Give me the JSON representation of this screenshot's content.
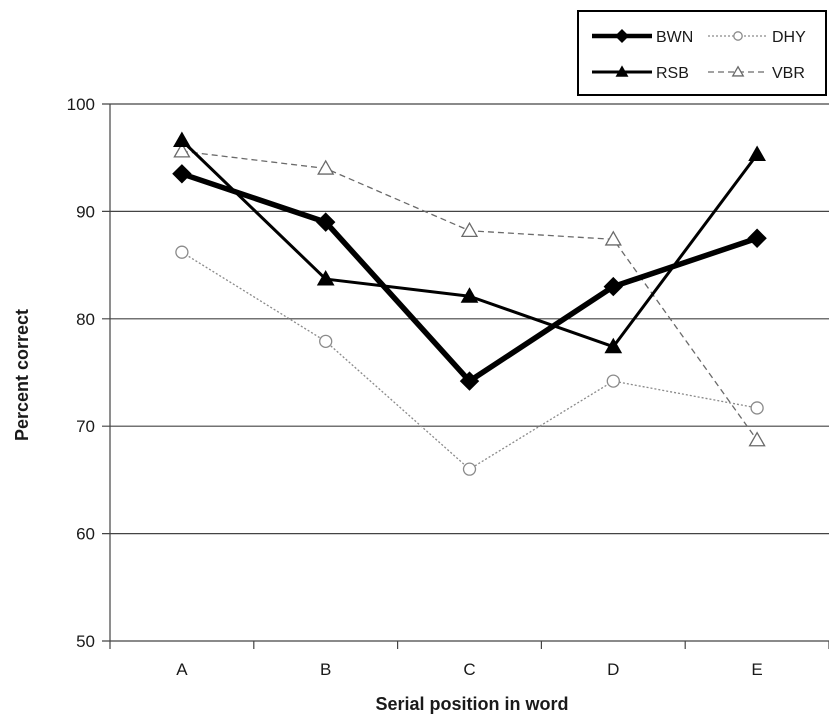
{
  "chart_data": {
    "type": "line",
    "xlabel": "Serial position in word",
    "ylabel": "Percent correct",
    "categories": [
      "A",
      "B",
      "C",
      "D",
      "E"
    ],
    "ylim": [
      50,
      100
    ],
    "yticks": [
      50,
      60,
      70,
      80,
      90,
      100
    ],
    "grid": "horizontal",
    "legend_position": "top-right",
    "series": [
      {
        "name": "BWN",
        "values": [
          93.5,
          89.0,
          74.2,
          83.0,
          87.5
        ],
        "marker": "diamond-filled",
        "line": "solid-thick",
        "color": "#000000"
      },
      {
        "name": "DHY",
        "values": [
          86.2,
          77.9,
          66.0,
          74.2,
          71.7
        ],
        "marker": "circle-open",
        "line": "dotted",
        "color": "#8a8a8a"
      },
      {
        "name": "RSB",
        "values": [
          96.6,
          83.7,
          82.1,
          77.4,
          95.3
        ],
        "marker": "triangle-filled",
        "line": "solid",
        "color": "#000000"
      },
      {
        "name": "VBR",
        "values": [
          95.6,
          94.0,
          88.2,
          87.4,
          68.7
        ],
        "marker": "triangle-open",
        "line": "dashed",
        "color": "#6a6a6a"
      }
    ],
    "legend_order": [
      "BWN",
      "DHY",
      "RSB",
      "VBR"
    ]
  }
}
